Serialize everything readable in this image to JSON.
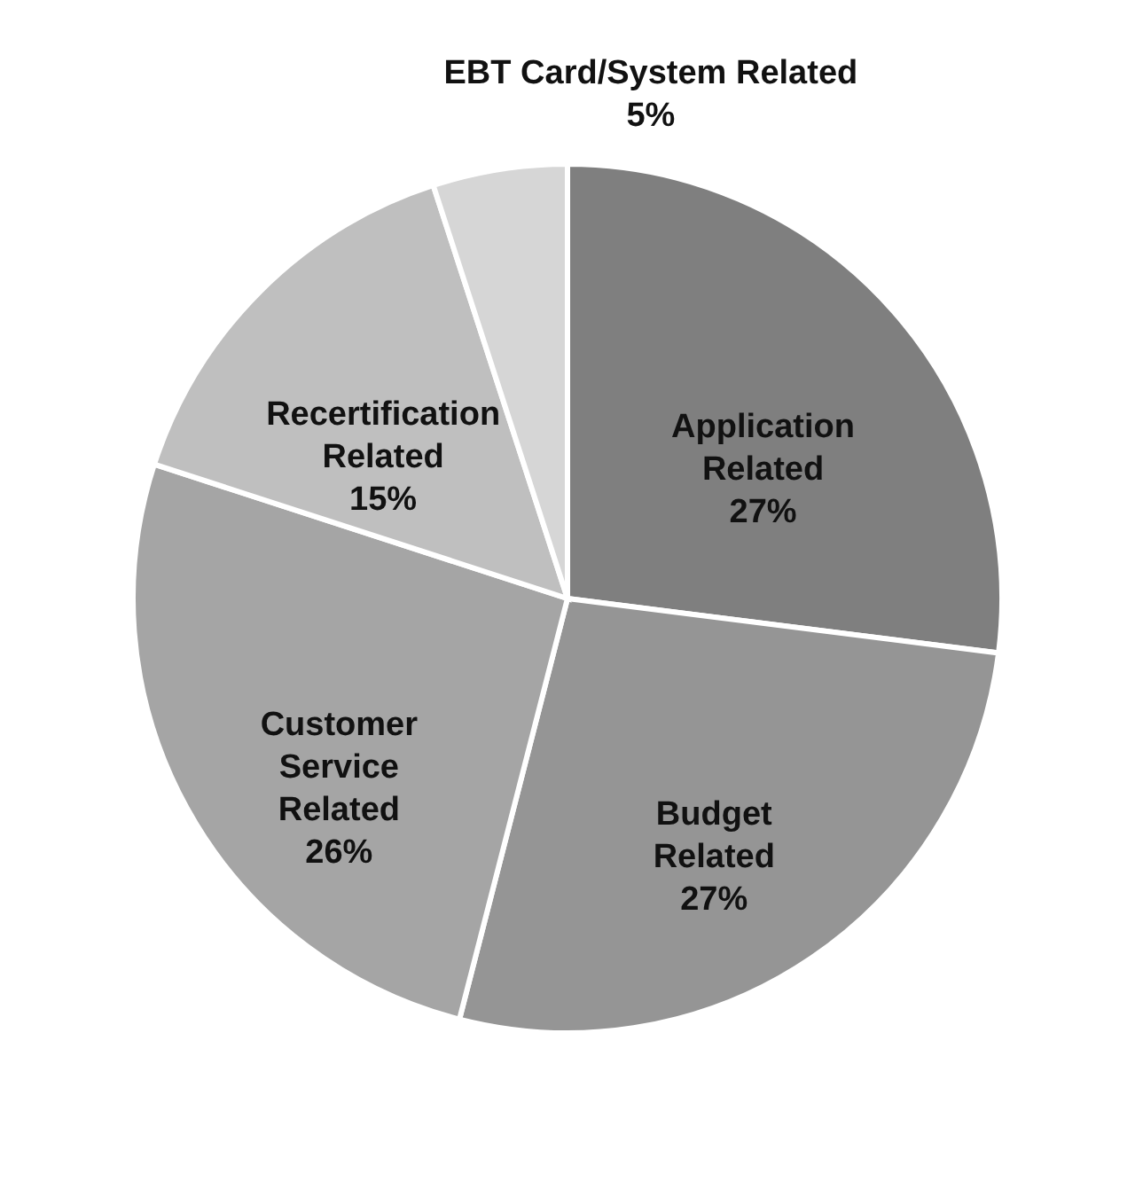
{
  "chart_data": {
    "type": "pie",
    "categories": [
      "Application Related",
      "Budget Related",
      "Customer Service Related",
      "Recertification Related",
      "EBT Card/System Related"
    ],
    "values": [
      27,
      27,
      26,
      15,
      5
    ],
    "value_labels": [
      "27%",
      "27%",
      "26%",
      "15%",
      "5%"
    ],
    "colors": [
      "#7f7f7f",
      "#959595",
      "#a5a5a5",
      "#bfbfbf",
      "#d6d6d6"
    ]
  }
}
